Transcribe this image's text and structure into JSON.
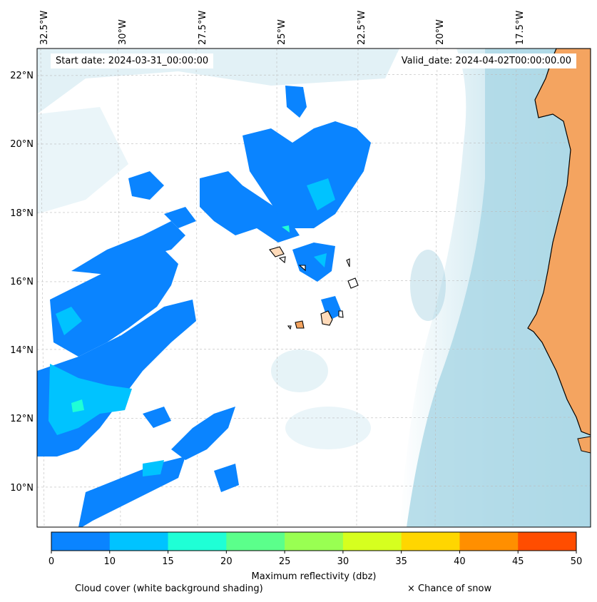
{
  "header": {
    "start_date": "Start date: 2024-03-31_00:00:00",
    "valid_date": "Valid_date: 2024-04-02T00:00:00.00"
  },
  "axes": {
    "longitude_ticks": [
      "32.5°W",
      "30°W",
      "27.5°W",
      "25°W",
      "22.5°W",
      "20°W",
      "17.5°W"
    ],
    "latitude_ticks": [
      "22°N",
      "20°N",
      "18°N",
      "16°N",
      "14°N",
      "12°N",
      "10°N"
    ]
  },
  "colorbar": {
    "title": "Maximum reflectivity (dbz)",
    "ticks": [
      "0",
      "10",
      "15",
      "20",
      "25",
      "30",
      "35",
      "40",
      "45",
      "50"
    ],
    "colors": [
      "#0a84ff",
      "#00c3ff",
      "#1fffd6",
      "#5bff8b",
      "#99ff52",
      "#d6ff1f",
      "#ffd600",
      "#ff8f00",
      "#ff4d00"
    ]
  },
  "legend": {
    "cloud_cover": "Cloud cover (white background shading)",
    "snow": "× Chance of snow"
  },
  "colors": {
    "ocean_near_coast": "#add8e6",
    "land": "#f4a460",
    "reflectivity_low": "#0a84ff",
    "reflectivity_mid": "#00c3ff",
    "reflectivity_high": "#1fffd6"
  }
}
